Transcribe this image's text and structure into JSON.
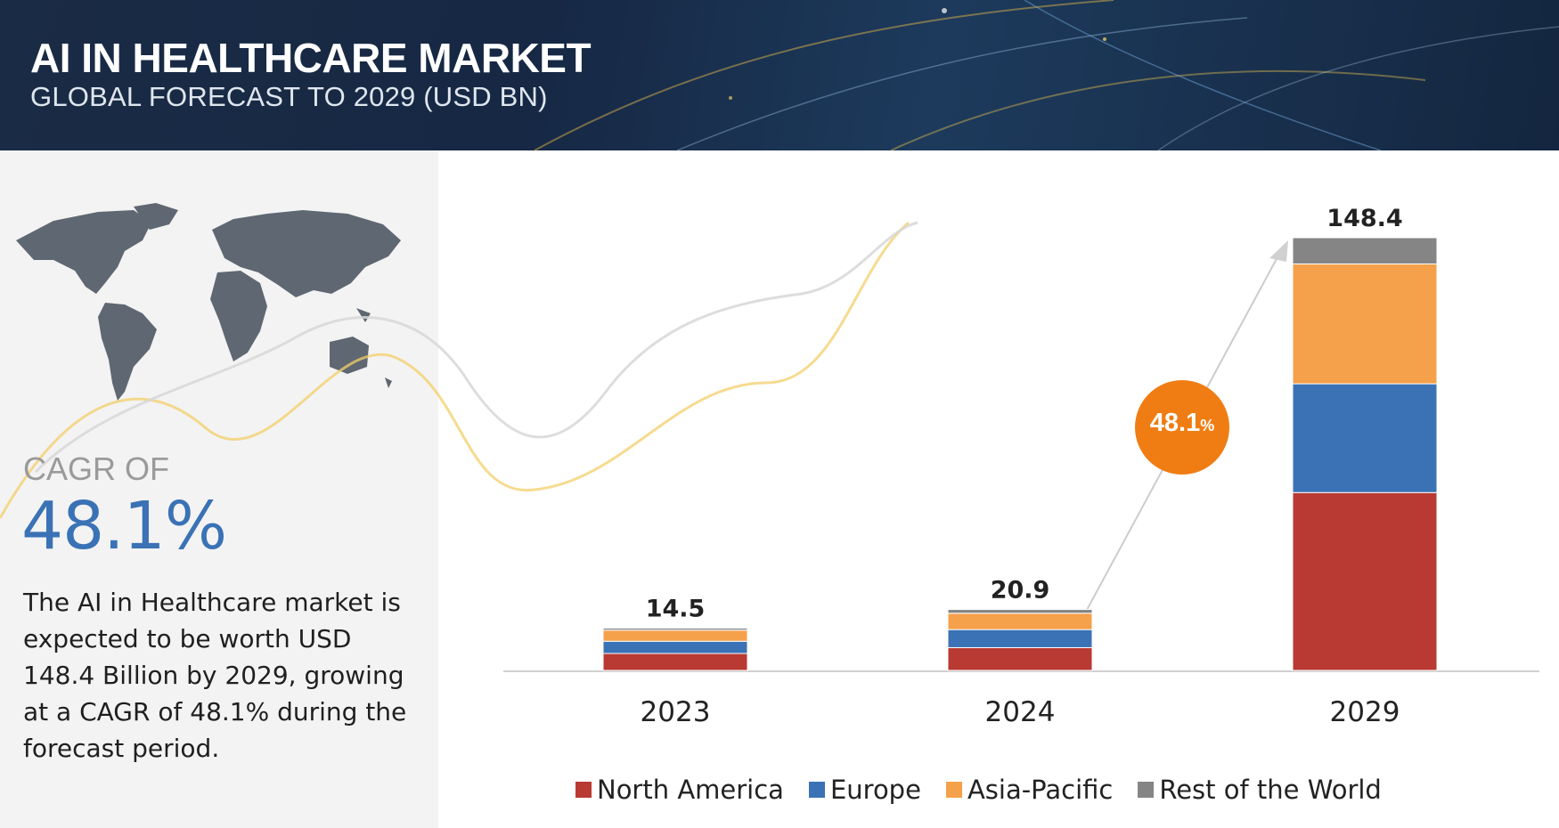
{
  "header": {
    "title": "AI IN HEALTHCARE MARKET",
    "subtitle": "GLOBAL FORECAST TO 2029 (USD BN)"
  },
  "summary": {
    "cagr_label": "CAGR OF",
    "cagr_value": "48.1%",
    "description": "The AI in Healthcare market is expected to be worth USD 148.4 Billion by 2029, growing at a CAGR of 48.1% during the forecast period."
  },
  "badge": {
    "value": "48.1",
    "unit": "%"
  },
  "colors": {
    "north_america": "#b83a32",
    "europe": "#3a72b5",
    "asia_pacific": "#f5a04a",
    "rest_of_world": "#858585",
    "badge": "#f07d13"
  },
  "chart_data": {
    "type": "bar",
    "stacked": true,
    "title": "AI IN HEALTHCARE MARKET",
    "subtitle": "GLOBAL FORECAST TO 2029 (USD BN)",
    "categories": [
      "2023",
      "2024",
      "2029"
    ],
    "totals": [
      "14.5",
      "20.9",
      "148.4"
    ],
    "series": [
      {
        "name": "North America",
        "values": [
          5.8,
          7.8,
          61.0
        ]
      },
      {
        "name": "Europe",
        "values": [
          4.2,
          6.2,
          37.3
        ]
      },
      {
        "name": "Asia-Pacific",
        "values": [
          3.8,
          5.6,
          41.1
        ]
      },
      {
        "name": "Rest of the World",
        "values": [
          0.7,
          1.3,
          9.0
        ]
      }
    ],
    "ylim": [
      0,
      150
    ],
    "xlabel": "",
    "ylabel": "USD BN",
    "legend_position": "bottom",
    "annotation": "48.1%"
  }
}
